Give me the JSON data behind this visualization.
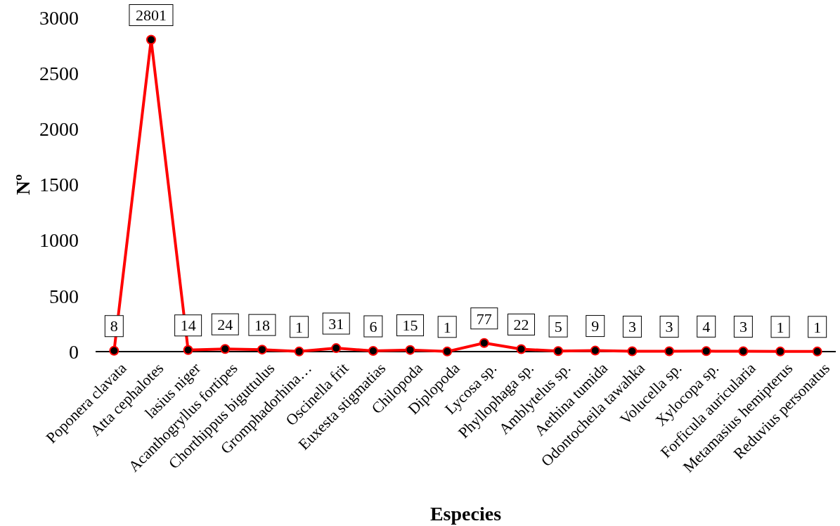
{
  "chart_data": {
    "type": "line",
    "xlabel": "Especies",
    "ylabel": "Nº",
    "categories": [
      "Poponera clavata",
      "Atta cephalotes",
      "lasius niger",
      "Acanthogryllus fortipes",
      "Chorthippus biguttulus",
      "Gromphadorhina…",
      "Oscinella frit",
      "Euxesta stigmatias",
      "Chilopoda",
      "Diplopoda",
      "Lycosa sp.",
      "Phyllophaga sp.",
      "Amblytelus sp.",
      "Aethina tumida",
      "Odontocheila tawahka",
      "Volucella sp.",
      "Xylocopa sp.",
      "Forficula auricularia",
      "Metamasius hemipterus",
      "Reduvius personatus"
    ],
    "series": [
      {
        "color": "#ff0000",
        "values": [
          8,
          2801,
          14,
          24,
          18,
          1,
          31,
          6,
          15,
          1,
          77,
          22,
          5,
          9,
          3,
          3,
          4,
          3,
          1,
          1
        ]
      }
    ],
    "ylim": [
      0,
      3000
    ],
    "yticks": [
      0,
      500,
      1000,
      1500,
      2000,
      2500,
      3000
    ],
    "marker": "circle",
    "line_style": "solid",
    "data_labels": true,
    "grid": false
  }
}
